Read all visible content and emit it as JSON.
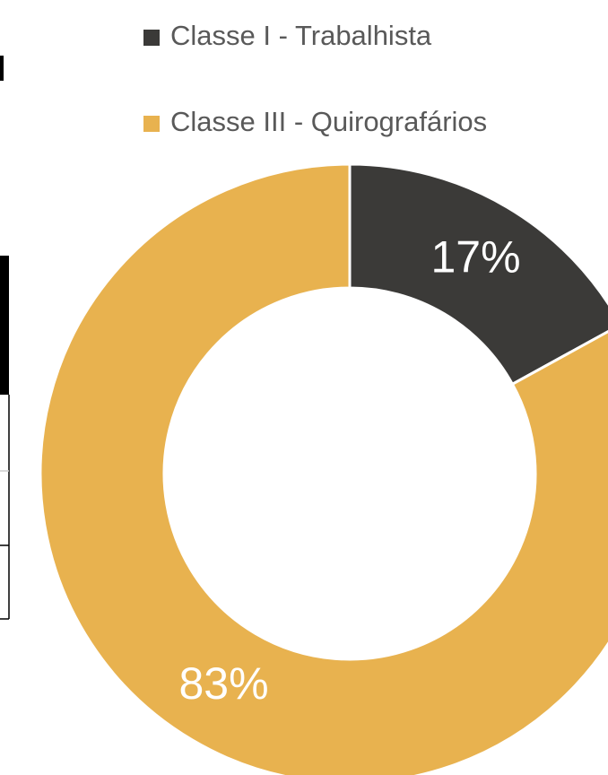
{
  "chart_data": {
    "type": "donut",
    "categories": [
      "Classe I - Trabalhista",
      "Classe III - Quirografários"
    ],
    "values": [
      17,
      83
    ],
    "value_labels": [
      "17%",
      "83%"
    ],
    "colors": [
      "#3b3a38",
      "#e8b24f"
    ],
    "legend": "top"
  }
}
